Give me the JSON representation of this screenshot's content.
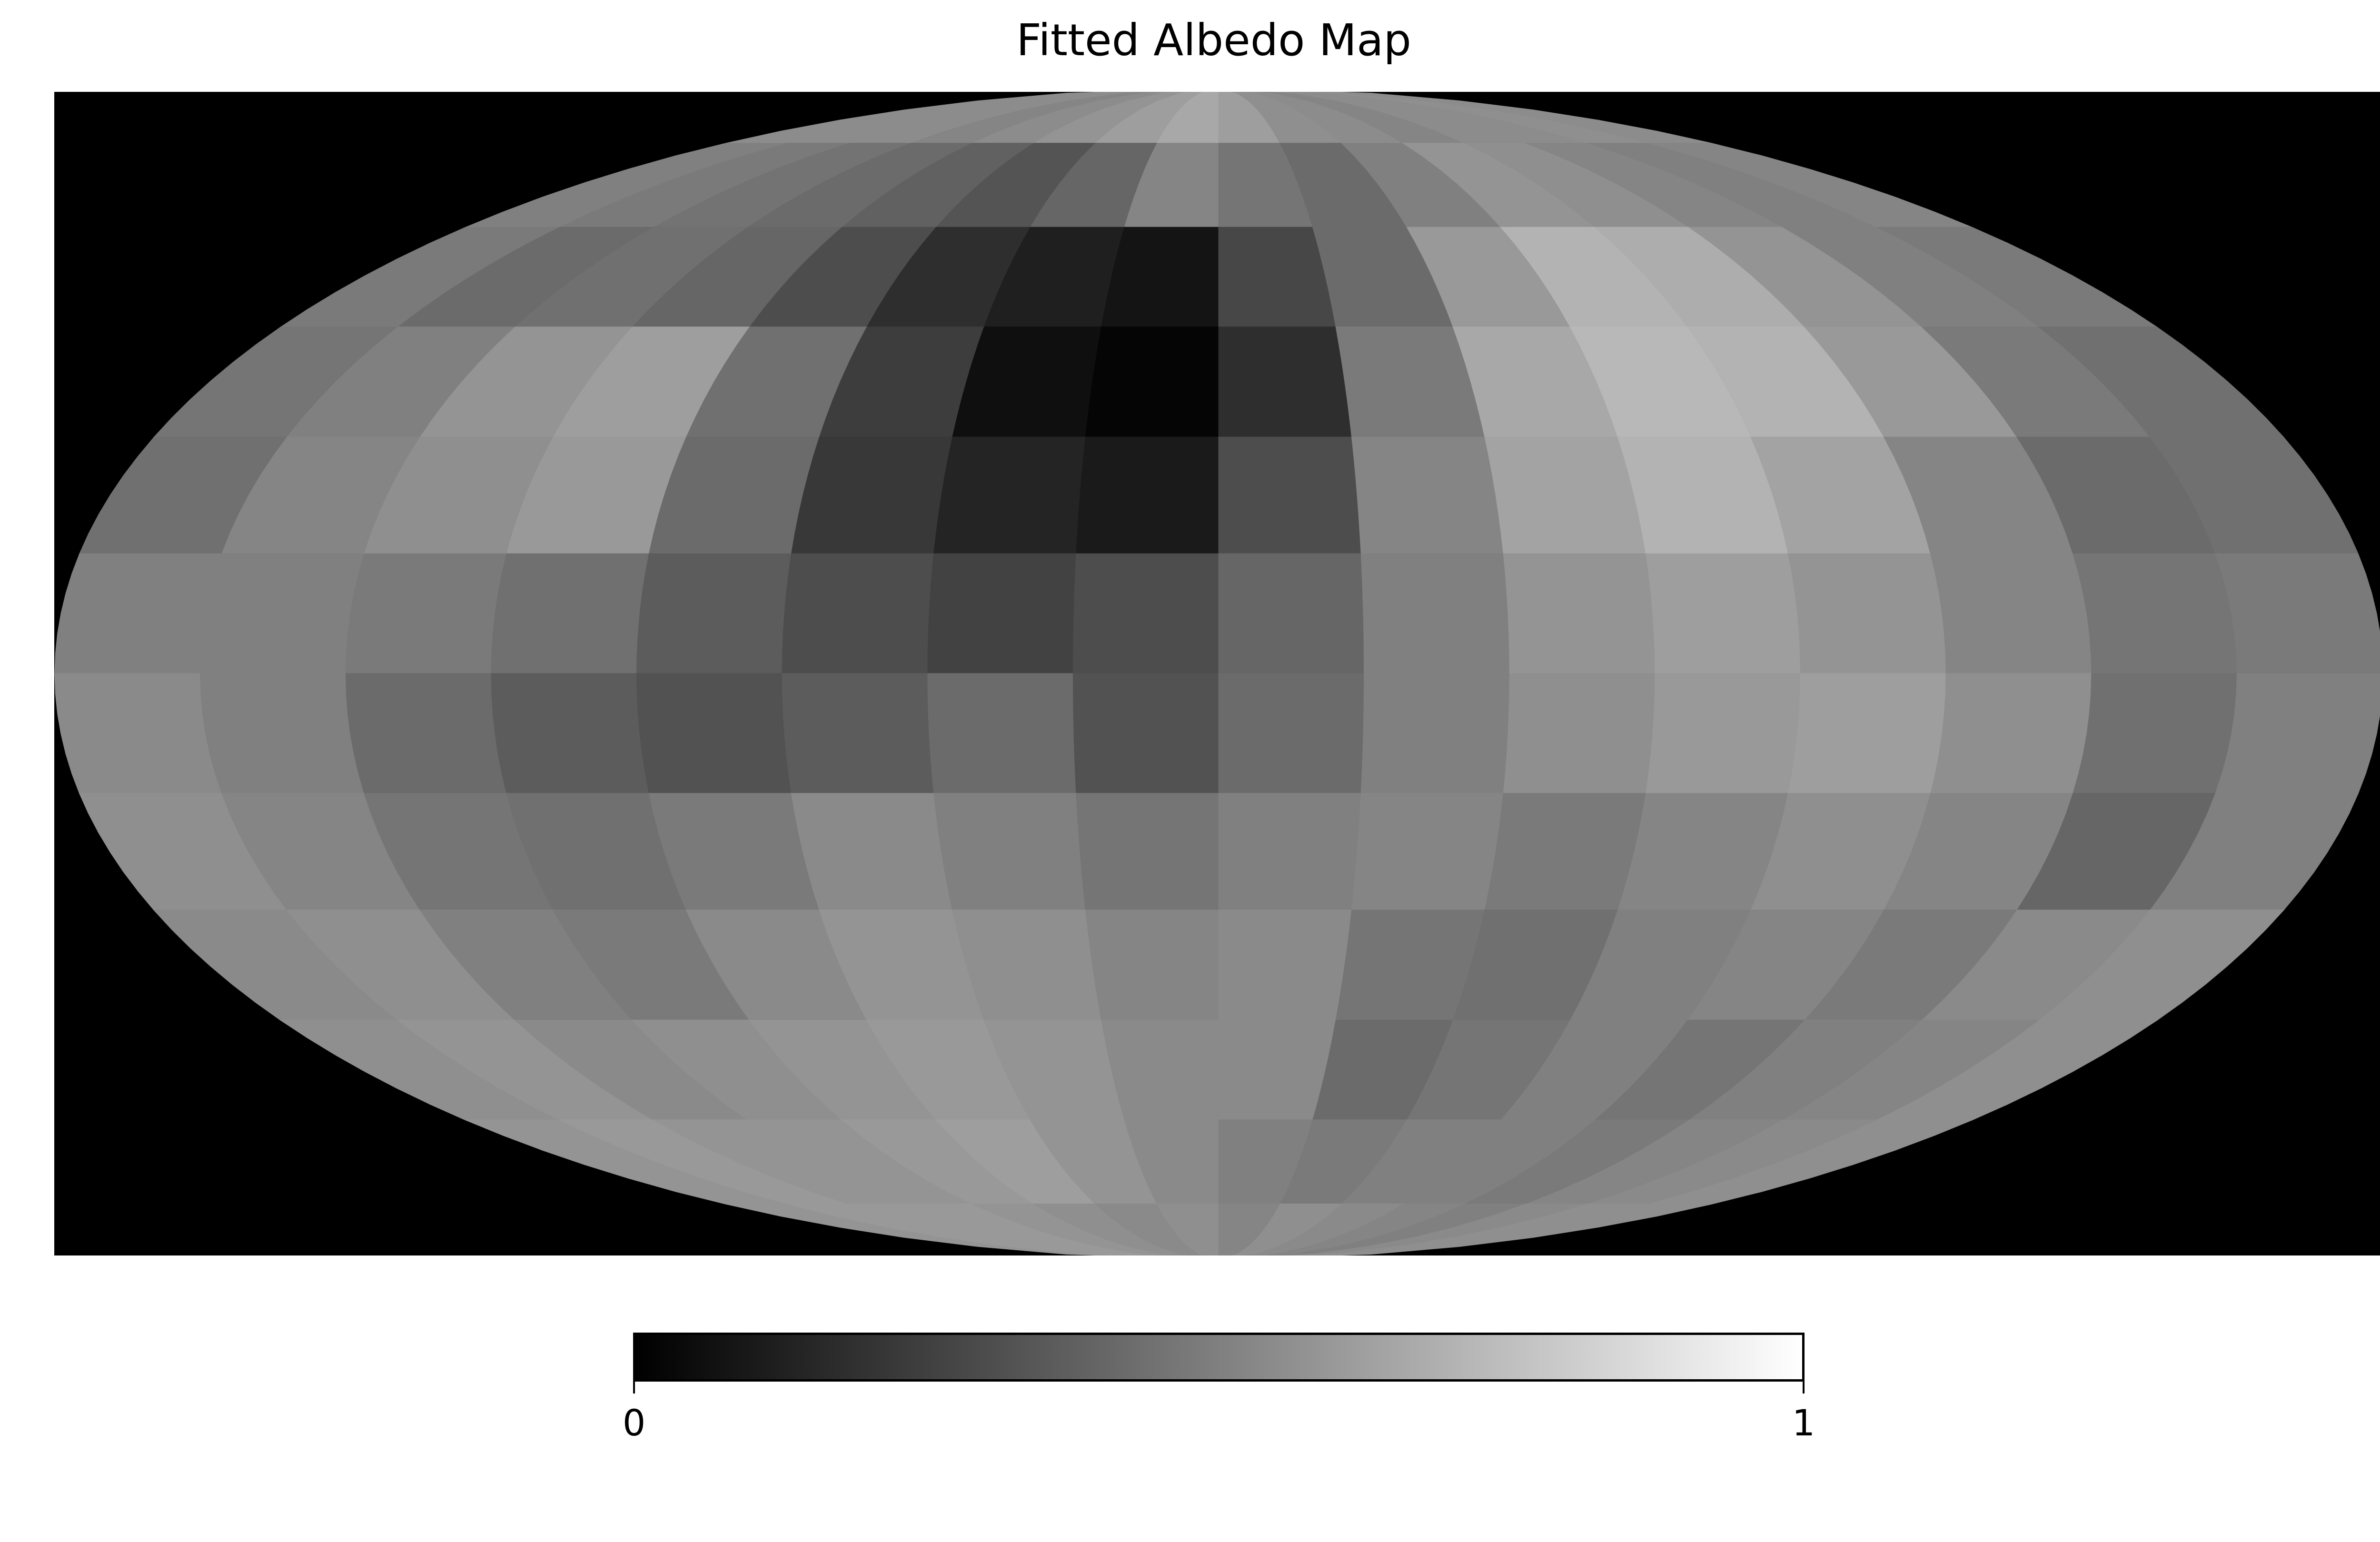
{
  "title": "Fitted Albedo Map",
  "colorbar": {
    "min_label": "0",
    "max_label": "1",
    "colors": [
      "#000000",
      "#ffffff"
    ]
  },
  "chart_data": {
    "type": "heatmap",
    "projection": "mollweide",
    "title": "Fitted Albedo Map",
    "colormap": "gray",
    "vmin": 0,
    "vmax": 1,
    "value_range": [
      0,
      1
    ],
    "background_color": "#000000",
    "grid": false,
    "lat_lines": [
      75,
      60,
      45,
      30,
      15,
      0,
      -15,
      -30,
      -45,
      -60,
      -75
    ],
    "lon_lines": [
      -180,
      -157.5,
      -135,
      -112.5,
      -90,
      -67.5,
      -45,
      -22.5,
      0,
      22.5,
      45,
      67.5,
      90,
      112.5,
      135,
      157.5,
      180
    ],
    "albedo": [
      [
        0.55,
        0.55,
        0.55,
        0.52,
        0.55,
        0.58,
        0.62,
        0.66,
        0.62,
        0.56,
        0.55,
        0.52,
        0.55,
        0.55,
        0.56,
        0.55
      ],
      [
        0.5,
        0.48,
        0.45,
        0.42,
        0.38,
        0.33,
        0.4,
        0.52,
        0.46,
        0.42,
        0.5,
        0.58,
        0.56,
        0.52,
        0.5,
        0.52
      ],
      [
        0.48,
        0.42,
        0.44,
        0.4,
        0.3,
        0.18,
        0.12,
        0.08,
        0.28,
        0.42,
        0.6,
        0.7,
        0.68,
        0.58,
        0.5,
        0.48
      ],
      [
        0.46,
        0.5,
        0.58,
        0.62,
        0.44,
        0.24,
        0.06,
        0.02,
        0.18,
        0.48,
        0.66,
        0.72,
        0.7,
        0.6,
        0.48,
        0.44
      ],
      [
        0.44,
        0.52,
        0.56,
        0.6,
        0.42,
        0.22,
        0.14,
        0.1,
        0.3,
        0.52,
        0.64,
        0.7,
        0.64,
        0.52,
        0.42,
        0.44
      ],
      [
        0.5,
        0.5,
        0.48,
        0.44,
        0.36,
        0.3,
        0.26,
        0.3,
        0.4,
        0.5,
        0.58,
        0.62,
        0.58,
        0.52,
        0.46,
        0.48
      ],
      [
        0.54,
        0.5,
        0.42,
        0.36,
        0.32,
        0.36,
        0.42,
        0.32,
        0.42,
        0.5,
        0.56,
        0.6,
        0.62,
        0.56,
        0.44,
        0.5
      ],
      [
        0.56,
        0.52,
        0.46,
        0.44,
        0.48,
        0.54,
        0.5,
        0.46,
        0.5,
        0.52,
        0.48,
        0.52,
        0.56,
        0.52,
        0.4,
        0.5
      ],
      [
        0.54,
        0.56,
        0.5,
        0.48,
        0.54,
        0.58,
        0.56,
        0.52,
        0.54,
        0.46,
        0.44,
        0.5,
        0.52,
        0.48,
        0.54,
        0.56
      ],
      [
        0.56,
        0.58,
        0.54,
        0.56,
        0.58,
        0.6,
        0.58,
        0.54,
        0.54,
        0.42,
        0.46,
        0.5,
        0.46,
        0.5,
        0.52,
        0.56
      ],
      [
        0.58,
        0.6,
        0.58,
        0.58,
        0.6,
        0.62,
        0.58,
        0.54,
        0.5,
        0.48,
        0.5,
        0.5,
        0.48,
        0.52,
        0.54,
        0.56
      ],
      [
        0.58,
        0.6,
        0.6,
        0.6,
        0.58,
        0.56,
        0.54,
        0.56,
        0.52,
        0.56,
        0.54,
        0.52,
        0.5,
        0.54,
        0.56,
        0.56
      ]
    ]
  }
}
